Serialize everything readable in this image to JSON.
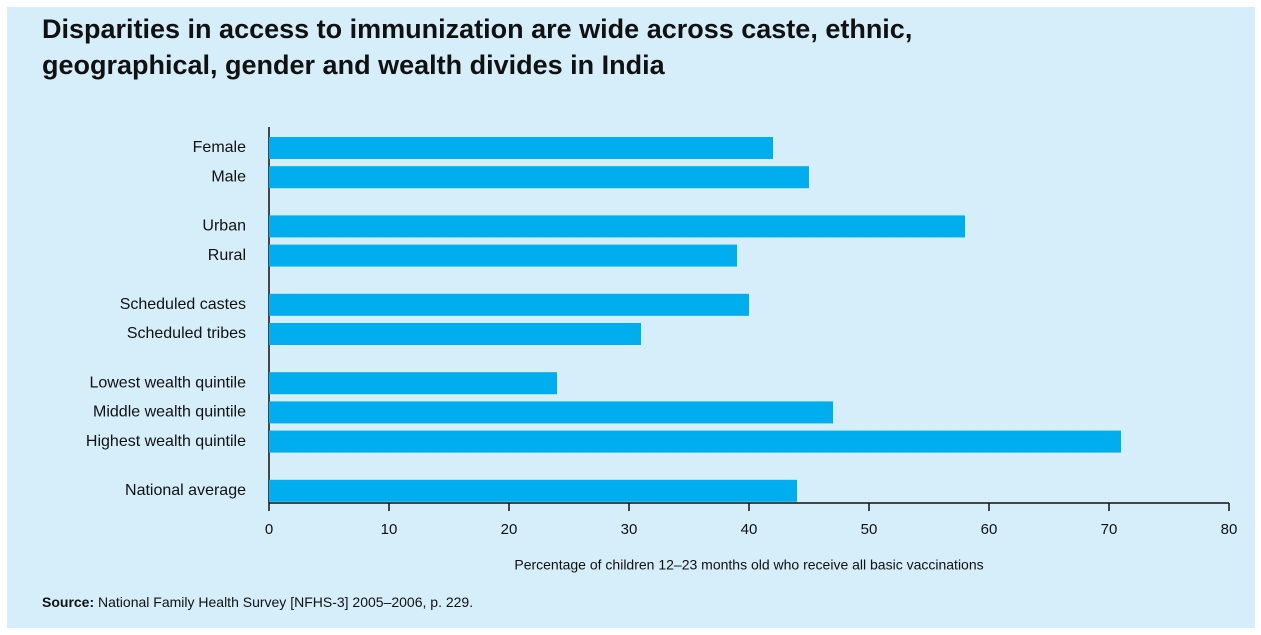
{
  "chart_data": {
    "type": "barh",
    "title": "Disparities in access to immunization are wide across caste, ethnic, geographical, gender and wealth divides in India",
    "categories": [
      "Female",
      "Male",
      null,
      "Urban",
      "Rural",
      null,
      "Scheduled castes",
      "Scheduled tribes",
      null,
      "Lowest wealth quintile",
      "Middle wealth quintile",
      "Highest wealth quintile",
      null,
      "National average"
    ],
    "values": [
      42,
      45,
      null,
      58,
      39,
      null,
      40,
      31,
      null,
      24,
      47,
      71,
      null,
      44
    ],
    "color": "#00adef",
    "xlim": [
      0,
      80
    ],
    "xticks": [
      0,
      10,
      20,
      30,
      40,
      50,
      60,
      70,
      80
    ],
    "xlabel": "Percentage of children 12–23 months old who receive all basic vaccinations",
    "source": {
      "label": "Source:",
      "text": "National Family Health Survey [NFHS-3] 2005–2006, p. 229."
    }
  }
}
